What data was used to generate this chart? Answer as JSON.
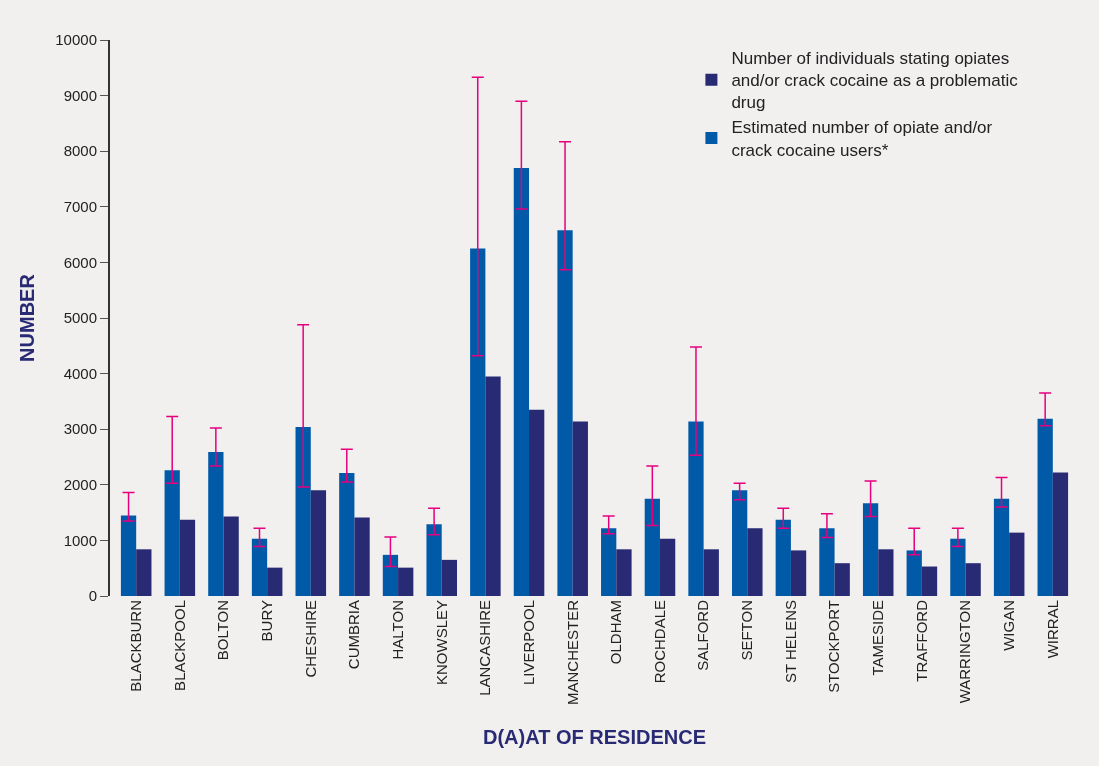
{
  "chart_data": {
    "type": "bar",
    "xlabel": "D(A)AT OF RESIDENCE",
    "ylabel": "NUMBER",
    "categories": [
      "BLACKBURN",
      "BLACKPOOL",
      "BOLTON",
      "BURY",
      "CHESHIRE",
      "CUMBRIA",
      "HALTON",
      "KNOWSLEY",
      "LANCASHIRE",
      "LIVERPOOL",
      "MANCHESTER",
      "OLDHAM",
      "ROCHDALE",
      "SALFORD",
      "SEFTON",
      "ST HELENS",
      "STOCKPORT",
      "TAMESIDE",
      "TRAFFORD",
      "WARRINGTON",
      "WIGAN",
      "WIRRAL"
    ],
    "series": [
      {
        "name": "Estimated number of opiate and/or crack cocaine users*",
        "color": "#005aa8",
        "values": [
          1450,
          2260,
          2590,
          1030,
          3040,
          2210,
          740,
          1290,
          6250,
          7700,
          6580,
          1220,
          1750,
          3140,
          1900,
          1370,
          1220,
          1670,
          820,
          1030,
          1750,
          3190
        ],
        "errors": [
          [
            1350,
            1860
          ],
          [
            2030,
            3230
          ],
          [
            2340,
            3020
          ],
          [
            890,
            1220
          ],
          [
            1960,
            4880
          ],
          [
            2050,
            2640
          ],
          [
            530,
            1060
          ],
          [
            1100,
            1580
          ],
          [
            4320,
            9330
          ],
          [
            6960,
            8900
          ],
          [
            5870,
            8170
          ],
          [
            1120,
            1440
          ],
          [
            1270,
            2340
          ],
          [
            2530,
            4480
          ],
          [
            1730,
            2030
          ],
          [
            1220,
            1580
          ],
          [
            1050,
            1480
          ],
          [
            1430,
            2070
          ],
          [
            740,
            1220
          ],
          [
            890,
            1220
          ],
          [
            1600,
            2130
          ],
          [
            3060,
            3650
          ]
        ]
      },
      {
        "name": "Number of individuals stating opiates and/or crack cocaine as a problematic drug",
        "color": "#282a74",
        "values": [
          840,
          1370,
          1430,
          510,
          1900,
          1410,
          510,
          650,
          3950,
          3350,
          3140,
          840,
          1030,
          840,
          1220,
          820,
          590,
          840,
          530,
          590,
          1140,
          2220
        ]
      }
    ],
    "ylim": [
      0,
      10000
    ],
    "yticks": [
      0,
      1000,
      2000,
      3000,
      4000,
      5000,
      6000,
      7000,
      8000,
      9000,
      10000
    ],
    "grid": false,
    "legend": "top right"
  }
}
